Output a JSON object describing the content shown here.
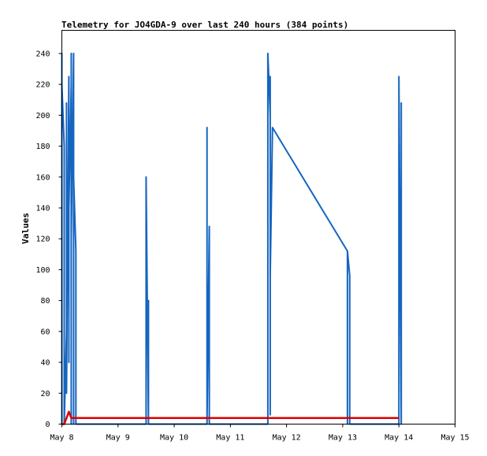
{
  "chart_data": {
    "type": "line",
    "title": "Telemetry for JO4GDA-9 over last 240 hours (384 points)",
    "xlabel": "",
    "ylabel": "Values",
    "x_tick_labels": [
      "May 8",
      "May 9",
      "May 10",
      "May 11",
      "May 12",
      "May 13",
      "May 14",
      "May 15"
    ],
    "y_tick_labels": [
      "0",
      "20",
      "40",
      "60",
      "80",
      "100",
      "120",
      "140",
      "160",
      "180",
      "200",
      "220",
      "240"
    ],
    "xlim": [
      "2024-05-08 00:00",
      "2024-05-15 00:00"
    ],
    "ylim": [
      0,
      255
    ],
    "grid": false,
    "legend": "none",
    "colors": {
      "series_main": "#1565c0",
      "series_flat": "#dd0000"
    },
    "series": [
      {
        "color": "#1565c0",
        "points": [
          [
            "2024-05-08 00:00",
            0
          ],
          [
            "2024-05-08 00:00",
            240
          ],
          [
            "2024-05-08 00:00",
            192
          ],
          [
            "2024-05-08 00:00",
            60
          ],
          [
            "2024-05-08 00:00",
            220
          ],
          [
            "2024-05-08 01:00",
            180
          ],
          [
            "2024-05-08 01:00",
            0
          ],
          [
            "2024-05-08 01:00",
            140
          ],
          [
            "2024-05-08 01:00",
            100
          ],
          [
            "2024-05-08 01:00",
            0
          ],
          [
            "2024-05-08 02:00",
            60
          ],
          [
            "2024-05-08 02:00",
            20
          ],
          [
            "2024-05-08 02:00",
            128
          ],
          [
            "2024-05-08 02:00",
            208
          ],
          [
            "2024-05-08 02:00",
            20
          ],
          [
            "2024-05-08 03:00",
            225
          ],
          [
            "2024-05-08 03:00",
            100
          ],
          [
            "2024-05-08 03:00",
            40
          ],
          [
            "2024-05-08 03:00",
            180
          ],
          [
            "2024-05-08 03:00",
            140
          ],
          [
            "2024-05-08 04:00",
            220
          ],
          [
            "2024-05-08 04:00",
            60
          ],
          [
            "2024-05-08 04:00",
            240
          ],
          [
            "2024-05-08 04:00",
            0
          ],
          [
            "2024-05-08 04:00",
            120
          ],
          [
            "2024-05-08 05:00",
            240
          ],
          [
            "2024-05-08 05:00",
            0
          ],
          [
            "2024-05-08 05:00",
            192
          ],
          [
            "2024-05-08 05:00",
            60
          ],
          [
            "2024-05-08 05:00",
            160
          ],
          [
            "2024-05-08 06:00",
            112
          ],
          [
            "2024-05-08 06:00",
            0
          ],
          [
            "2024-05-09 12:00",
            0
          ],
          [
            "2024-05-09 12:00",
            112
          ],
          [
            "2024-05-09 12:00",
            100
          ],
          [
            "2024-05-09 12:00",
            160
          ],
          [
            "2024-05-09 13:00",
            0
          ],
          [
            "2024-05-09 13:00",
            80
          ],
          [
            "2024-05-09 13:00",
            0
          ],
          [
            "2024-05-10 14:00",
            0
          ],
          [
            "2024-05-10 14:00",
            64
          ],
          [
            "2024-05-10 14:00",
            192
          ],
          [
            "2024-05-10 14:00",
            0
          ],
          [
            "2024-05-10 15:00",
            128
          ],
          [
            "2024-05-10 15:00",
            0
          ],
          [
            "2024-05-11 16:00",
            0
          ],
          [
            "2024-05-11 16:00",
            48
          ],
          [
            "2024-05-11 16:00",
            128
          ],
          [
            "2024-05-11 16:00",
            177
          ],
          [
            "2024-05-11 16:00",
            6
          ],
          [
            "2024-05-11 16:00",
            240
          ],
          [
            "2024-05-11 17:00",
            200
          ],
          [
            "2024-05-11 17:00",
            6
          ],
          [
            "2024-05-11 17:00",
            225
          ],
          [
            "2024-05-11 17:00",
            96
          ],
          [
            "2024-05-11 18:00",
            192
          ],
          [
            "2024-05-13 02:00",
            112
          ],
          [
            "2024-05-13 02:00",
            0
          ],
          [
            "2024-05-13 02:00",
            112
          ],
          [
            "2024-05-13 03:00",
            96
          ],
          [
            "2024-05-13 03:00",
            0
          ],
          [
            "2024-05-14 00:00",
            0
          ],
          [
            "2024-05-14 00:00",
            168
          ],
          [
            "2024-05-14 00:00",
            56
          ],
          [
            "2024-05-14 00:00",
            225
          ],
          [
            "2024-05-14 01:00",
            0
          ],
          [
            "2024-05-14 01:00",
            56
          ],
          [
            "2024-05-14 01:00",
            208
          ],
          [
            "2024-05-14 01:00",
            0
          ]
        ]
      },
      {
        "color": "#dd0000",
        "points": [
          [
            "2024-05-08 00:00",
            0
          ],
          [
            "2024-05-08 01:00",
            0
          ],
          [
            "2024-05-08 03:00",
            8
          ],
          [
            "2024-05-08 04:00",
            4
          ],
          [
            "2024-05-14 00:00",
            4
          ]
        ]
      }
    ]
  }
}
